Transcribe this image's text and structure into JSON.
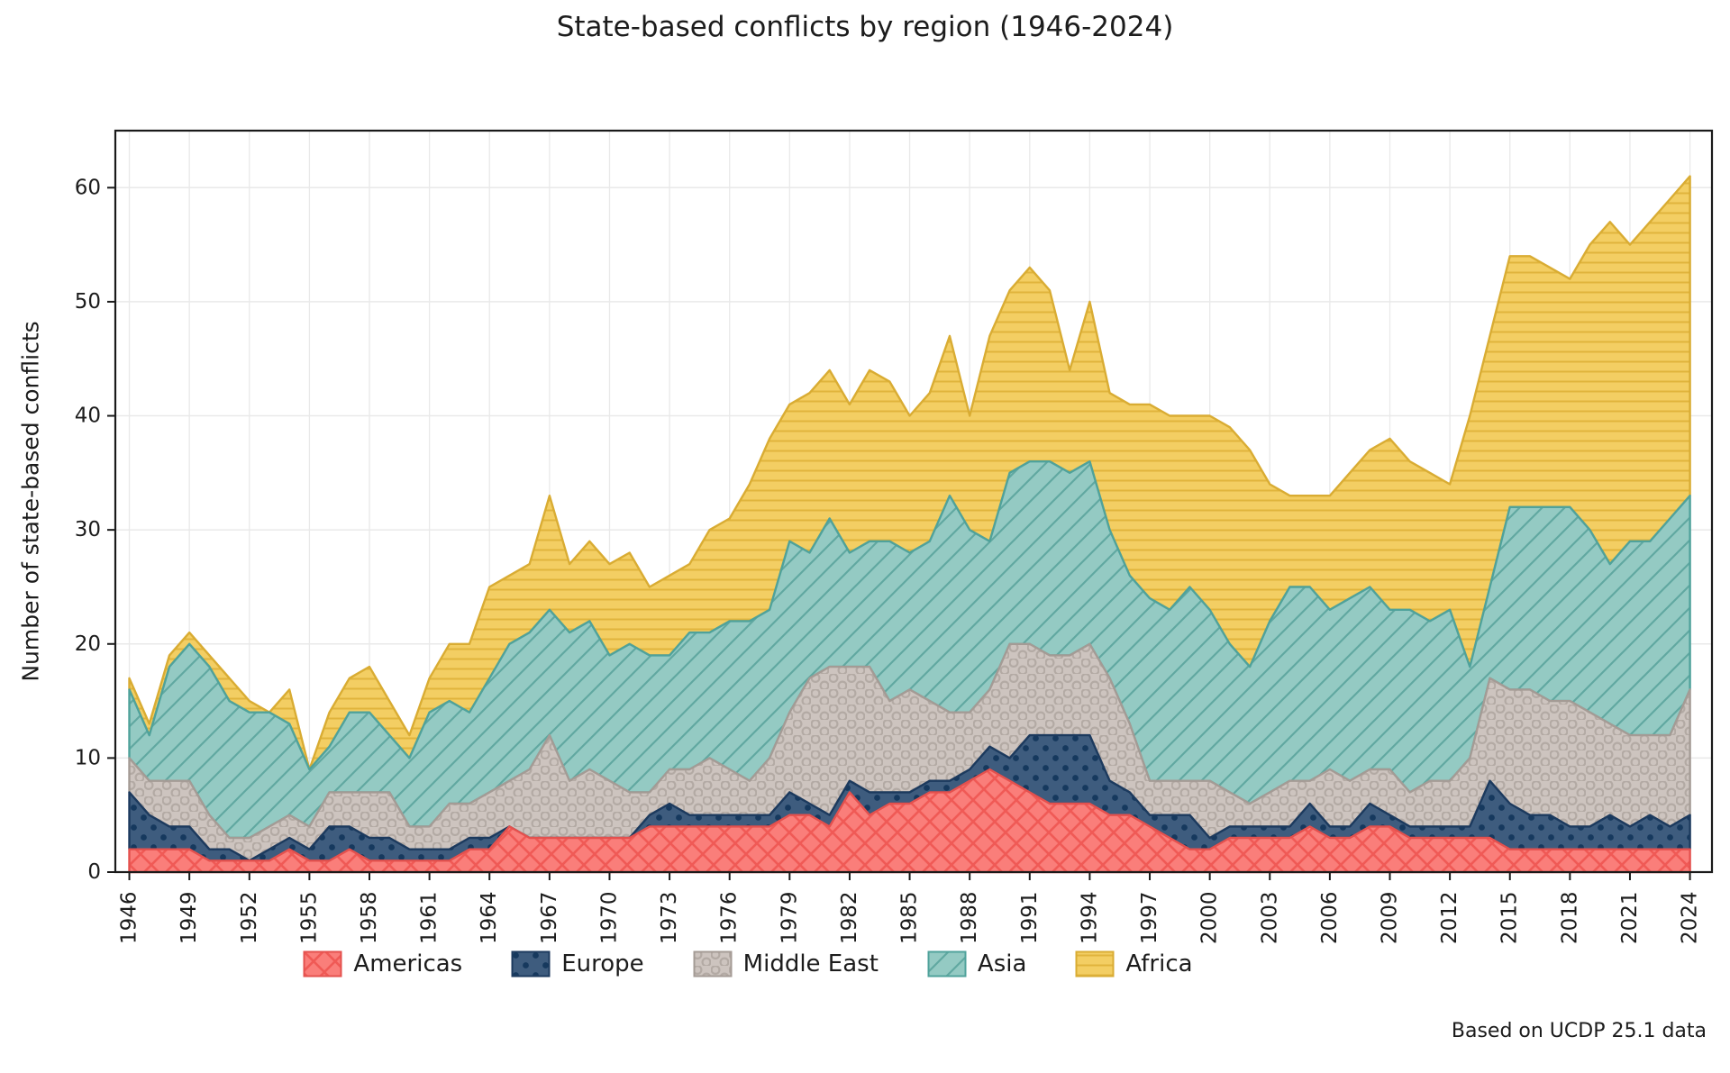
{
  "page": {
    "title": "State-based conflicts by region (1946-2024)",
    "footer": "Based on UCDP 25.1 data"
  },
  "chart_data": {
    "type": "area",
    "stacked": true,
    "title": "State-based conflicts by region (1946-2024)",
    "xlabel": "",
    "ylabel": "Number of state-based conflicts",
    "source_note": "Based on UCDP 25.1 data",
    "grid": true,
    "legend_position": "bottom",
    "ylim": [
      0,
      65
    ],
    "xlim": [
      1945.3,
      2025.1
    ],
    "y_ticks": [
      0,
      10,
      20,
      30,
      40,
      50,
      60
    ],
    "x_ticks": [
      1946,
      1949,
      1952,
      1955,
      1958,
      1961,
      1964,
      1967,
      1970,
      1973,
      1976,
      1979,
      1982,
      1985,
      1988,
      1991,
      1994,
      1997,
      2000,
      2003,
      2006,
      2009,
      2012,
      2015,
      2018,
      2021,
      2024
    ],
    "x": [
      1946,
      1947,
      1948,
      1949,
      1950,
      1951,
      1952,
      1953,
      1954,
      1955,
      1956,
      1957,
      1958,
      1959,
      1960,
      1961,
      1962,
      1963,
      1964,
      1965,
      1966,
      1967,
      1968,
      1969,
      1970,
      1971,
      1972,
      1973,
      1974,
      1975,
      1976,
      1977,
      1978,
      1979,
      1980,
      1981,
      1982,
      1983,
      1984,
      1985,
      1986,
      1987,
      1988,
      1989,
      1990,
      1991,
      1992,
      1993,
      1994,
      1995,
      1996,
      1997,
      1998,
      1999,
      2000,
      2001,
      2002,
      2003,
      2004,
      2005,
      2006,
      2007,
      2008,
      2009,
      2010,
      2011,
      2012,
      2013,
      2014,
      2015,
      2016,
      2017,
      2018,
      2019,
      2020,
      2021,
      2022,
      2023,
      2024
    ],
    "series": [
      {
        "name": "Americas",
        "fill": "#FA7E7A",
        "edge": "#E4514E",
        "pattern": "crosshatch",
        "pattern_color": "#F05A56",
        "values": [
          2,
          2,
          2,
          2,
          1,
          1,
          1,
          1,
          2,
          1,
          1,
          2,
          1,
          1,
          1,
          1,
          1,
          2,
          2,
          4,
          3,
          3,
          3,
          3,
          3,
          3,
          4,
          4,
          4,
          4,
          4,
          4,
          4,
          5,
          5,
          4,
          7,
          5,
          6,
          6,
          7,
          7,
          8,
          9,
          8,
          7,
          6,
          6,
          6,
          5,
          5,
          4,
          3,
          2,
          2,
          3,
          3,
          3,
          3,
          4,
          3,
          3,
          4,
          4,
          3,
          3,
          3,
          3,
          3,
          2,
          2,
          2,
          2,
          2,
          2,
          2,
          2,
          2,
          2
        ]
      },
      {
        "name": "Europe",
        "fill": "#3E5C7E",
        "edge": "#1C3A5E",
        "pattern": "dots",
        "pattern_color": "#16395E",
        "values": [
          5,
          3,
          2,
          2,
          1,
          1,
          0,
          1,
          1,
          1,
          3,
          2,
          2,
          2,
          1,
          1,
          1,
          1,
          1,
          0,
          0,
          0,
          0,
          0,
          0,
          0,
          1,
          2,
          1,
          1,
          1,
          1,
          1,
          2,
          1,
          1,
          1,
          2,
          1,
          1,
          1,
          1,
          1,
          2,
          2,
          5,
          6,
          6,
          6,
          3,
          2,
          1,
          2,
          3,
          1,
          1,
          1,
          1,
          1,
          2,
          1,
          1,
          2,
          1,
          1,
          1,
          1,
          1,
          5,
          4,
          3,
          3,
          2,
          2,
          3,
          2,
          3,
          2,
          3
        ]
      },
      {
        "name": "Middle East",
        "fill": "#CDC4BF",
        "edge": "#A49B95",
        "pattern": "rings",
        "pattern_color": "#B3AAA4",
        "values": [
          3,
          3,
          4,
          4,
          3,
          1,
          2,
          2,
          2,
          2,
          3,
          3,
          4,
          4,
          2,
          2,
          4,
          3,
          4,
          4,
          6,
          9,
          5,
          6,
          5,
          4,
          2,
          3,
          4,
          5,
          4,
          3,
          5,
          7,
          11,
          13,
          10,
          11,
          8,
          9,
          7,
          6,
          5,
          5,
          10,
          8,
          7,
          7,
          8,
          9,
          6,
          3,
          3,
          3,
          5,
          3,
          2,
          3,
          4,
          2,
          5,
          4,
          3,
          4,
          3,
          4,
          4,
          6,
          9,
          10,
          11,
          10,
          11,
          10,
          8,
          8,
          7,
          8,
          11
        ]
      },
      {
        "name": "Asia",
        "fill": "#94CAC3",
        "edge": "#4FA29B",
        "pattern": "diagonal",
        "pattern_color": "#61A8A1",
        "values": [
          6,
          4,
          10,
          12,
          13,
          12,
          11,
          10,
          8,
          5,
          4,
          7,
          7,
          5,
          6,
          10,
          9,
          8,
          10,
          12,
          12,
          11,
          13,
          13,
          11,
          13,
          12,
          10,
          12,
          11,
          13,
          14,
          13,
          15,
          11,
          13,
          10,
          11,
          14,
          12,
          14,
          19,
          16,
          13,
          15,
          16,
          17,
          16,
          16,
          13,
          13,
          16,
          15,
          17,
          15,
          13,
          12,
          15,
          17,
          17,
          14,
          16,
          16,
          14,
          16,
          14,
          15,
          8,
          8,
          16,
          16,
          17,
          17,
          16,
          14,
          17,
          17,
          19,
          17
        ]
      },
      {
        "name": "Africa",
        "fill": "#F3CE63",
        "edge": "#D9AC33",
        "pattern": "hlines",
        "pattern_color": "#E0B43C",
        "values": [
          1,
          1,
          1,
          1,
          1,
          2,
          1,
          0,
          3,
          0,
          3,
          3,
          4,
          3,
          2,
          3,
          5,
          6,
          8,
          6,
          6,
          10,
          6,
          7,
          8,
          8,
          6,
          7,
          6,
          9,
          9,
          12,
          15,
          12,
          14,
          13,
          13,
          15,
          14,
          12,
          13,
          14,
          10,
          18,
          16,
          17,
          15,
          9,
          14,
          12,
          15,
          17,
          17,
          15,
          17,
          19,
          19,
          12,
          8,
          8,
          10,
          11,
          12,
          15,
          13,
          13,
          11,
          22,
          22,
          22,
          22,
          21,
          20,
          25,
          30,
          26,
          28,
          28,
          28
        ]
      }
    ]
  }
}
